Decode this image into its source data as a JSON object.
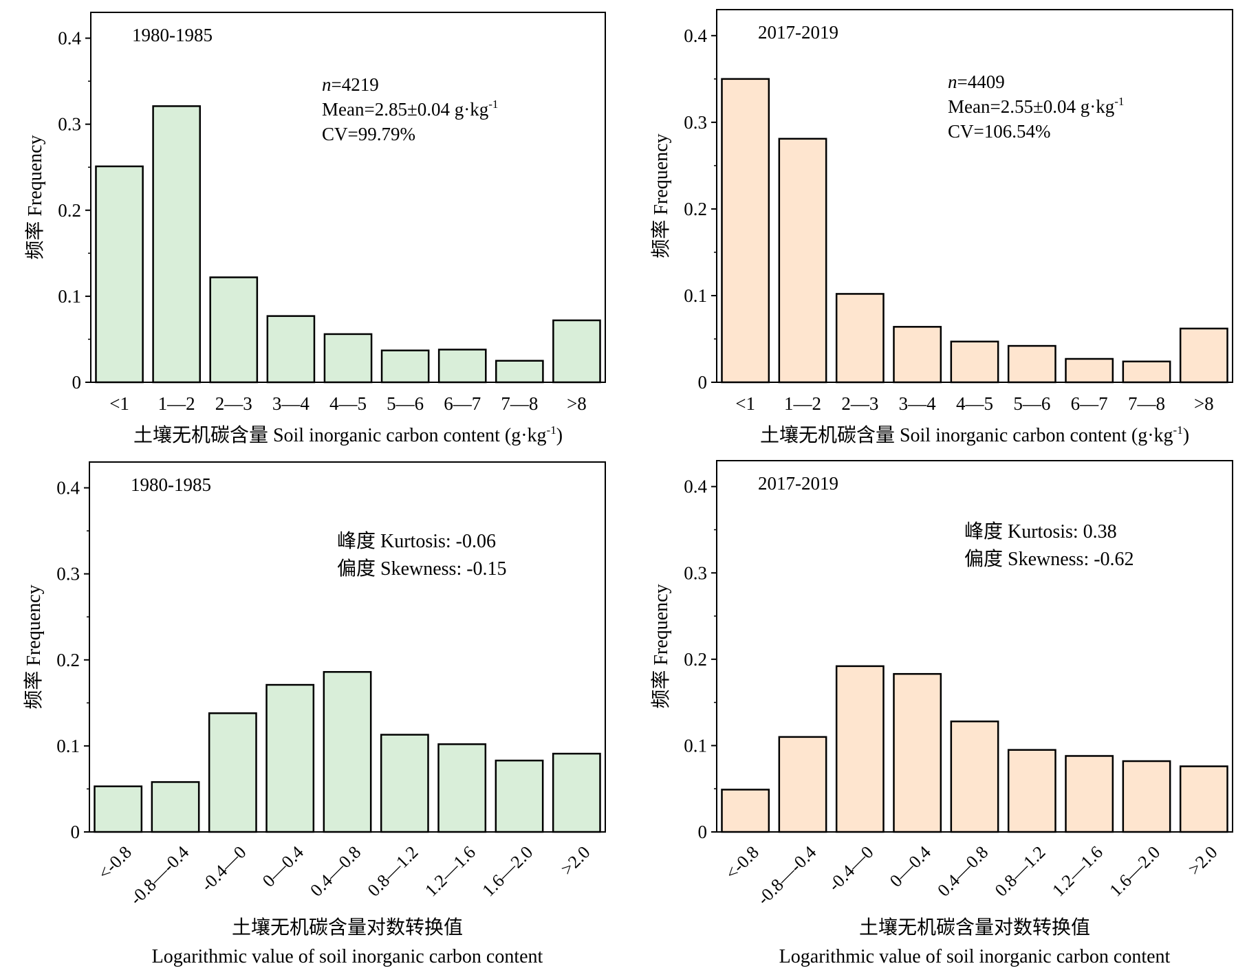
{
  "figure": {
    "colors": {
      "green_fill": "#d9eed9",
      "orange_fill": "#fee5cf",
      "stroke": "#000000"
    }
  },
  "chart_data": [
    {
      "type": "bar",
      "panel": "top-left",
      "fill": "green",
      "period": "1980-1985",
      "stats": [
        "4219",
        "Mean=2.85±0.04 g·kg",
        "CV=99.79%"
      ],
      "ylabel": "频率 Frequency",
      "xlabel": "土壤无机碳含量 Soil inorganic carbon content (g·kg",
      "xlabel_close": ")",
      "categories": [
        "<1",
        "1—2",
        "2—3",
        "3—4",
        "4—5",
        "5—6",
        "6—7",
        "7—8",
        ">8"
      ],
      "values": [
        0.251,
        0.321,
        0.122,
        0.077,
        0.056,
        0.037,
        0.038,
        0.025,
        0.072
      ],
      "ylim": [
        0,
        0.43
      ],
      "yticks": [
        0,
        0.1,
        0.2,
        0.3,
        0.4
      ],
      "ytick_labels": [
        "0",
        "0.1",
        "0.2",
        "0.3",
        "0.4"
      ]
    },
    {
      "type": "bar",
      "panel": "top-right",
      "fill": "orange",
      "period": "2017-2019",
      "stats": [
        "4409",
        "Mean=2.55±0.04 g·kg",
        "CV=106.54%"
      ],
      "ylabel": "频率 Frequency",
      "xlabel": "土壤无机碳含量 Soil inorganic carbon content (g·kg",
      "xlabel_close": ")",
      "categories": [
        "<1",
        "1—2",
        "2—3",
        "3—4",
        "4—5",
        "5—6",
        "6—7",
        "7—8",
        ">8"
      ],
      "values": [
        0.35,
        0.281,
        0.102,
        0.064,
        0.047,
        0.042,
        0.027,
        0.024,
        0.062
      ],
      "ylim": [
        0,
        0.43
      ],
      "yticks": [
        0,
        0.1,
        0.2,
        0.3,
        0.4
      ],
      "ytick_labels": [
        "0",
        "0.1",
        "0.2",
        "0.3",
        "0.4"
      ]
    },
    {
      "type": "bar",
      "panel": "bottom-left",
      "fill": "green",
      "period": "1980-1985",
      "stats": [
        "峰度 Kurtosis: -0.06",
        "偏度 Skewness: -0.15"
      ],
      "ylabel": "频率 Frequency",
      "xlabel_lines": [
        "土壤无机碳含量对数转换值",
        "Logarithmic value of soil inorganic carbon content"
      ],
      "categories": [
        "<-0.8",
        "-0.8—-0.4",
        "-0.4—0",
        "0—0.4",
        "0.4—0.8",
        "0.8—1.2",
        "1.2—1.6",
        "1.6—2.0",
        ">2.0"
      ],
      "values": [
        0.053,
        0.058,
        0.138,
        0.171,
        0.186,
        0.113,
        0.102,
        0.083,
        0.091
      ],
      "ylim": [
        0,
        0.43
      ],
      "yticks": [
        0,
        0.1,
        0.2,
        0.3,
        0.4
      ],
      "ytick_labels": [
        "0",
        "0.1",
        "0.2",
        "0.3",
        "0.4"
      ]
    },
    {
      "type": "bar",
      "panel": "bottom-right",
      "fill": "orange",
      "period": "2017-2019",
      "stats": [
        "峰度 Kurtosis: 0.38",
        "偏度 Skewness: -0.62"
      ],
      "ylabel": "频率 Frequency",
      "xlabel_lines": [
        "土壤无机碳含量对数转换值",
        "Logarithmic value of soil inorganic carbon content"
      ],
      "categories": [
        "<-0.8",
        "-0.8—-0.4",
        "-0.4—0",
        "0—0.4",
        "0.4—0.8",
        "0.8—1.2",
        "1.2—1.6",
        "1.6—2.0",
        ">2.0"
      ],
      "values": [
        0.049,
        0.11,
        0.192,
        0.183,
        0.128,
        0.095,
        0.088,
        0.082,
        0.076
      ],
      "ylim": [
        0,
        0.43
      ],
      "yticks": [
        0,
        0.1,
        0.2,
        0.3,
        0.4
      ],
      "ytick_labels": [
        "0",
        "0.1",
        "0.2",
        "0.3",
        "0.4"
      ]
    }
  ]
}
